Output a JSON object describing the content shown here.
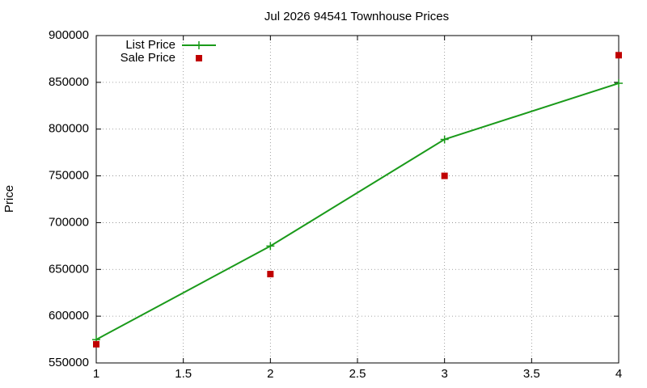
{
  "chart_data": {
    "type": "line",
    "title": "Jul 2026 94541 Townhouse Prices",
    "y_label": "Price",
    "x": [
      1,
      2,
      3,
      4
    ],
    "series": [
      {
        "name": "List Price",
        "color": "#1a9a1a",
        "mode": "lines+points",
        "values": [
          575000,
          675000,
          789000,
          849000
        ]
      },
      {
        "name": "Sale Price",
        "color": "#c00000",
        "mode": "points",
        "values": [
          570000,
          645000,
          750000,
          879000
        ]
      }
    ],
    "xlim": [
      1,
      4
    ],
    "xticks": [
      1,
      1.5,
      2,
      2.5,
      3,
      3.5,
      4
    ],
    "ylim": [
      550000,
      900000
    ],
    "yticks": [
      550000,
      600000,
      650000,
      700000,
      750000,
      800000,
      850000,
      900000
    ],
    "grid": true,
    "legend": "top-left"
  }
}
